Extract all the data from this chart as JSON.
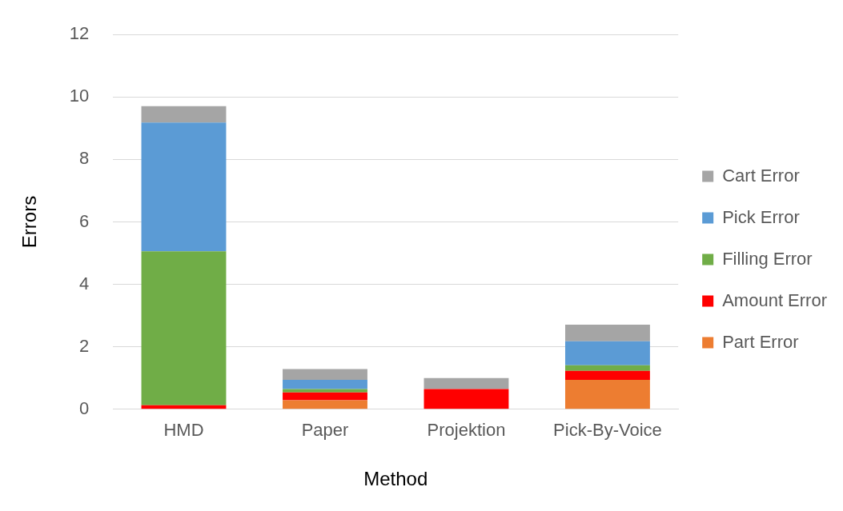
{
  "chart_data": {
    "type": "bar",
    "stacked": true,
    "xlabel": "Method",
    "ylabel": "Errors",
    "categories": [
      "HMD",
      "Paper",
      "Projektion",
      "Pick-By-Voice"
    ],
    "series": [
      {
        "name": "Part Error",
        "color": "#ed7d31",
        "values": [
          0,
          0.29,
          0,
          0.94
        ]
      },
      {
        "name": "Amount Error",
        "color": "#ff0000",
        "values": [
          0.13,
          0.25,
          0.65,
          0.29
        ]
      },
      {
        "name": "Filling Error",
        "color": "#70ad47",
        "values": [
          4.93,
          0.11,
          0,
          0.18
        ]
      },
      {
        "name": "Pick Error",
        "color": "#5b9bd5",
        "values": [
          4.12,
          0.29,
          0,
          0.77
        ]
      },
      {
        "name": "Cart Error",
        "color": "#a5a5a5",
        "values": [
          0.53,
          0.35,
          0.35,
          0.53
        ]
      }
    ],
    "ylim": [
      0,
      12
    ],
    "yticks": [
      0,
      2,
      4,
      6,
      8,
      10,
      12
    ],
    "grid": "y",
    "legend": "right"
  }
}
